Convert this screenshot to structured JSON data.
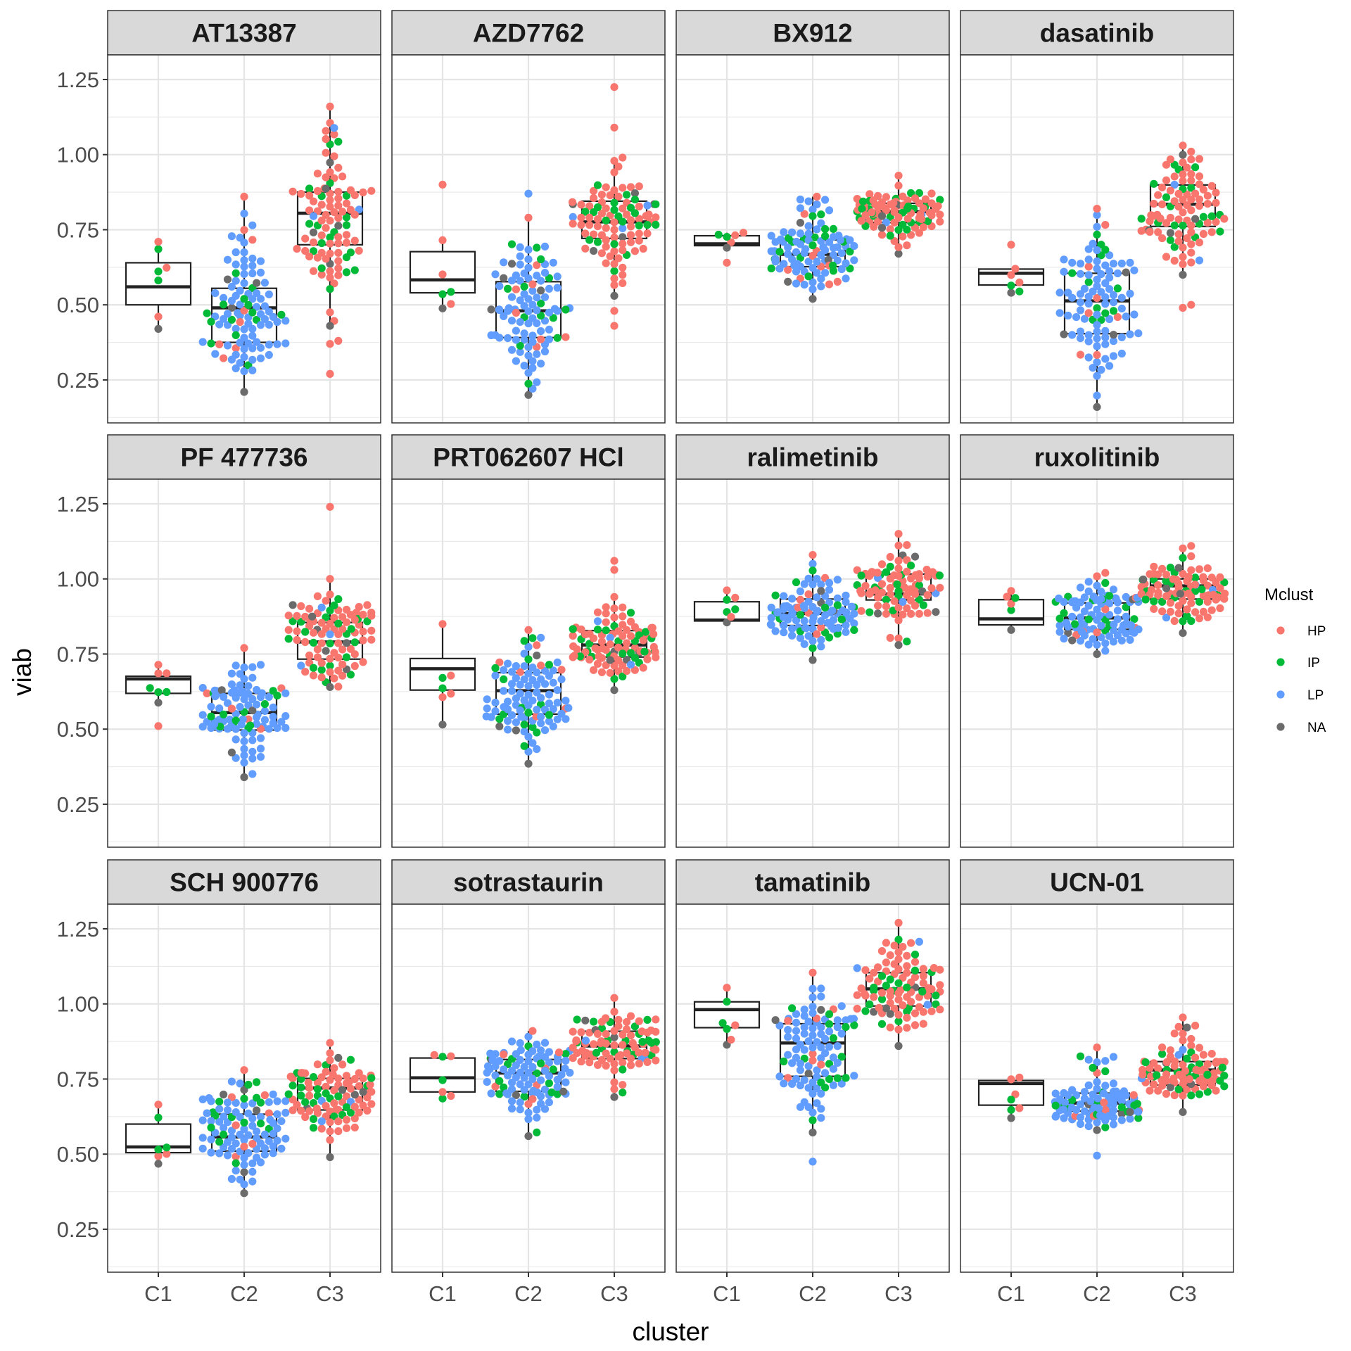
{
  "chart_data": {
    "type": "box",
    "overlay": "beeswarm points",
    "title": "",
    "xlabel": "cluster",
    "ylabel": "viab",
    "ylim": [
      0.107,
      1.332
    ],
    "yticks": [
      0.25,
      0.5,
      0.75,
      1.0,
      1.25
    ],
    "ytick_labels": [
      "0.25",
      "0.50",
      "0.75",
      "1.00",
      "1.25"
    ],
    "categories": [
      "C1",
      "C2",
      "C3"
    ],
    "grid": true,
    "facet_layout": "3 rows x 4 columns",
    "legend": {
      "title": "Mclust",
      "position": "right",
      "entries": [
        {
          "label": "HP",
          "color": "#F8766D"
        },
        {
          "label": "IP",
          "color": "#00BA38"
        },
        {
          "label": "LP",
          "color": "#619CFF"
        },
        {
          "label": "NA",
          "color": "#6B6B6B"
        }
      ]
    },
    "panels": [
      {
        "title": "AT13387",
        "groups": [
          {
            "cluster": "C1",
            "q1": 0.5,
            "median": 0.56,
            "q3": 0.64,
            "whisker_low": 0.42,
            "whisker_high": 0.71,
            "n": {
              "HP": 3,
              "IP": 3,
              "LP": 0,
              "NA": 1
            }
          },
          {
            "cluster": "C2",
            "q1": 0.375,
            "median": 0.49,
            "q3": 0.555,
            "whisker_low": 0.21,
            "whisker_high": 0.86,
            "n": {
              "HP": 8,
              "IP": 14,
              "LP": 78,
              "NA": 4
            }
          },
          {
            "cluster": "C3",
            "q1": 0.7,
            "median": 0.805,
            "q3": 0.875,
            "whisker_low": 0.43,
            "whisker_high": 1.16,
            "n": {
              "HP": 70,
              "IP": 20,
              "LP": 3,
              "NA": 6
            },
            "outliers": [
              0.37,
              0.38,
              0.27
            ]
          }
        ]
      },
      {
        "title": "AZD7762",
        "groups": [
          {
            "cluster": "C1",
            "q1": 0.54,
            "median": 0.583,
            "q3": 0.677,
            "whisker_low": 0.488,
            "whisker_high": 0.715,
            "n": {
              "HP": 3,
              "IP": 2,
              "LP": 0,
              "NA": 1
            },
            "outliers": [
              0.9
            ]
          },
          {
            "cluster": "C2",
            "q1": 0.391,
            "median": 0.48,
            "q3": 0.577,
            "whisker_low": 0.2,
            "whisker_high": 0.79,
            "n": {
              "HP": 8,
              "IP": 14,
              "LP": 78,
              "NA": 5
            },
            "outliers": [
              0.87
            ]
          },
          {
            "cluster": "C3",
            "q1": 0.721,
            "median": 0.776,
            "q3": 0.845,
            "whisker_low": 0.53,
            "whisker_high": 0.99,
            "n": {
              "HP": 70,
              "IP": 22,
              "LP": 3,
              "NA": 6
            },
            "outliers": [
              1.09,
              1.225,
              0.48,
              0.43
            ]
          }
        ]
      },
      {
        "title": "BX912",
        "groups": [
          {
            "cluster": "C1",
            "q1": 0.697,
            "median": 0.703,
            "q3": 0.73,
            "whisker_low": 0.69,
            "whisker_high": 0.74,
            "n": {
              "HP": 3,
              "IP": 2,
              "LP": 0,
              "NA": 1
            },
            "outliers": [
              0.64
            ]
          },
          {
            "cluster": "C2",
            "q1": 0.627,
            "median": 0.668,
            "q3": 0.716,
            "whisker_low": 0.52,
            "whisker_high": 0.86,
            "n": {
              "HP": 10,
              "IP": 20,
              "LP": 72,
              "NA": 4
            }
          },
          {
            "cluster": "C3",
            "q1": 0.774,
            "median": 0.81,
            "q3": 0.838,
            "whisker_low": 0.67,
            "whisker_high": 0.93,
            "n": {
              "HP": 65,
              "IP": 28,
              "LP": 2,
              "NA": 4
            }
          }
        ]
      },
      {
        "title": "dasatinib",
        "groups": [
          {
            "cluster": "C1",
            "q1": 0.566,
            "median": 0.605,
            "q3": 0.619,
            "whisker_low": 0.54,
            "whisker_high": 0.62,
            "n": {
              "HP": 3,
              "IP": 2,
              "LP": 0,
              "NA": 1
            },
            "outliers": [
              0.7
            ]
          },
          {
            "cluster": "C2",
            "q1": 0.404,
            "median": 0.513,
            "q3": 0.605,
            "whisker_low": 0.16,
            "whisker_high": 0.82,
            "n": {
              "HP": 8,
              "IP": 12,
              "LP": 80,
              "NA": 4
            }
          },
          {
            "cluster": "C3",
            "q1": 0.761,
            "median": 0.835,
            "q3": 0.899,
            "whisker_low": 0.6,
            "whisker_high": 1.03,
            "n": {
              "HP": 72,
              "IP": 20,
              "LP": 2,
              "NA": 5
            },
            "outliers": [
              0.5,
              0.49
            ]
          }
        ]
      },
      {
        "title": "PF 477736",
        "groups": [
          {
            "cluster": "C1",
            "q1": 0.619,
            "median": 0.667,
            "q3": 0.676,
            "whisker_low": 0.588,
            "whisker_high": 0.714,
            "n": {
              "HP": 3,
              "IP": 3,
              "LP": 0,
              "NA": 1
            },
            "outliers": [
              0.51
            ]
          },
          {
            "cluster": "C2",
            "q1": 0.497,
            "median": 0.555,
            "q3": 0.619,
            "whisker_low": 0.34,
            "whisker_high": 0.77,
            "n": {
              "HP": 6,
              "IP": 12,
              "LP": 82,
              "NA": 4
            }
          },
          {
            "cluster": "C3",
            "q1": 0.733,
            "median": 0.79,
            "q3": 0.855,
            "whisker_low": 0.64,
            "whisker_high": 1.0,
            "n": {
              "HP": 68,
              "IP": 22,
              "LP": 3,
              "NA": 7
            },
            "outliers": [
              1.24
            ]
          }
        ]
      },
      {
        "title": "PRT062607 HCl",
        "groups": [
          {
            "cluster": "C1",
            "q1": 0.63,
            "median": 0.701,
            "q3": 0.735,
            "whisker_low": 0.515,
            "whisker_high": 0.85,
            "n": {
              "HP": 4,
              "IP": 2,
              "LP": 0,
              "NA": 1
            }
          },
          {
            "cluster": "C2",
            "q1": 0.55,
            "median": 0.628,
            "q3": 0.688,
            "whisker_low": 0.385,
            "whisker_high": 0.83,
            "n": {
              "HP": 8,
              "IP": 16,
              "LP": 78,
              "NA": 4
            }
          },
          {
            "cluster": "C3",
            "q1": 0.74,
            "median": 0.78,
            "q3": 0.828,
            "whisker_low": 0.63,
            "whisker_high": 0.94,
            "n": {
              "HP": 68,
              "IP": 24,
              "LP": 3,
              "NA": 5
            },
            "outliers": [
              1.03,
              1.06
            ]
          }
        ]
      },
      {
        "title": "ralimetinib",
        "groups": [
          {
            "cluster": "C1",
            "q1": 0.86,
            "median": 0.863,
            "q3": 0.924,
            "whisker_low": 0.855,
            "whisker_high": 0.962,
            "n": {
              "HP": 3,
              "IP": 3,
              "LP": 0,
              "NA": 1
            }
          },
          {
            "cluster": "C2",
            "q1": 0.845,
            "median": 0.885,
            "q3": 0.933,
            "whisker_low": 0.73,
            "whisker_high": 1.08,
            "n": {
              "HP": 8,
              "IP": 16,
              "LP": 78,
              "NA": 4
            }
          },
          {
            "cluster": "C3",
            "q1": 0.93,
            "median": 0.95,
            "q3": 1.016,
            "whisker_low": 0.78,
            "whisker_high": 1.15,
            "n": {
              "HP": 70,
              "IP": 20,
              "LP": 3,
              "NA": 6
            }
          }
        ]
      },
      {
        "title": "ruxolitinib",
        "groups": [
          {
            "cluster": "C1",
            "q1": 0.847,
            "median": 0.867,
            "q3": 0.931,
            "whisker_low": 0.83,
            "whisker_high": 0.96,
            "n": {
              "HP": 3,
              "IP": 2,
              "LP": 0,
              "NA": 1
            }
          },
          {
            "cluster": "C2",
            "q1": 0.832,
            "median": 0.87,
            "q3": 0.92,
            "whisker_low": 0.75,
            "whisker_high": 1.02,
            "n": {
              "HP": 8,
              "IP": 16,
              "LP": 78,
              "NA": 4
            }
          },
          {
            "cluster": "C3",
            "q1": 0.933,
            "median": 0.977,
            "q3": 1.0,
            "whisker_low": 0.82,
            "whisker_high": 1.11,
            "n": {
              "HP": 70,
              "IP": 22,
              "LP": 3,
              "NA": 5
            }
          }
        ]
      },
      {
        "title": "SCH 900776",
        "groups": [
          {
            "cluster": "C1",
            "q1": 0.505,
            "median": 0.524,
            "q3": 0.6,
            "whisker_low": 0.468,
            "whisker_high": 0.665,
            "n": {
              "HP": 3,
              "IP": 3,
              "LP": 0,
              "NA": 1
            }
          },
          {
            "cluster": "C2",
            "q1": 0.51,
            "median": 0.557,
            "q3": 0.633,
            "whisker_low": 0.37,
            "whisker_high": 0.78,
            "n": {
              "HP": 8,
              "IP": 16,
              "LP": 78,
              "NA": 5
            }
          },
          {
            "cluster": "C3",
            "q1": 0.647,
            "median": 0.72,
            "q3": 0.752,
            "whisker_low": 0.49,
            "whisker_high": 0.87,
            "n": {
              "HP": 68,
              "IP": 24,
              "LP": 3,
              "NA": 6
            }
          }
        ]
      },
      {
        "title": "sotrastaurin",
        "groups": [
          {
            "cluster": "C1",
            "q1": 0.707,
            "median": 0.754,
            "q3": 0.82,
            "whisker_low": 0.685,
            "whisker_high": 0.83,
            "n": {
              "HP": 4,
              "IP": 3,
              "LP": 0,
              "NA": 0
            }
          },
          {
            "cluster": "C2",
            "q1": 0.709,
            "median": 0.77,
            "q3": 0.815,
            "whisker_low": 0.56,
            "whisker_high": 0.91,
            "n": {
              "HP": 8,
              "IP": 16,
              "LP": 78,
              "NA": 4
            }
          },
          {
            "cluster": "C3",
            "q1": 0.818,
            "median": 0.86,
            "q3": 0.909,
            "whisker_low": 0.69,
            "whisker_high": 1.02,
            "n": {
              "HP": 70,
              "IP": 22,
              "LP": 3,
              "NA": 4
            }
          }
        ]
      },
      {
        "title": "tamatinib",
        "groups": [
          {
            "cluster": "C1",
            "q1": 0.921,
            "median": 0.981,
            "q3": 1.007,
            "whisker_low": 0.864,
            "whisker_high": 1.054,
            "n": {
              "HP": 3,
              "IP": 3,
              "LP": 0,
              "NA": 1
            }
          },
          {
            "cluster": "C2",
            "q1": 0.759,
            "median": 0.87,
            "q3": 0.934,
            "whisker_low": 0.572,
            "whisker_high": 1.104,
            "n": {
              "HP": 8,
              "IP": 16,
              "LP": 78,
              "NA": 4
            },
            "outliers": [
              0.475
            ]
          },
          {
            "cluster": "C3",
            "q1": 0.993,
            "median": 1.05,
            "q3": 1.104,
            "whisker_low": 0.86,
            "whisker_high": 1.27,
            "n": {
              "HP": 70,
              "IP": 22,
              "LP": 3,
              "NA": 5
            }
          }
        ]
      },
      {
        "title": "UCN-01",
        "groups": [
          {
            "cluster": "C1",
            "q1": 0.663,
            "median": 0.735,
            "q3": 0.745,
            "whisker_low": 0.62,
            "whisker_high": 0.755,
            "n": {
              "HP": 4,
              "IP": 2,
              "LP": 0,
              "NA": 1
            }
          },
          {
            "cluster": "C2",
            "q1": 0.643,
            "median": 0.67,
            "q3": 0.703,
            "whisker_low": 0.58,
            "whisker_high": 0.855,
            "n": {
              "HP": 8,
              "IP": 16,
              "LP": 78,
              "NA": 4
            },
            "outliers": [
              0.495
            ]
          },
          {
            "cluster": "C3",
            "q1": 0.73,
            "median": 0.78,
            "q3": 0.808,
            "whisker_low": 0.64,
            "whisker_high": 0.955,
            "n": {
              "HP": 68,
              "IP": 22,
              "LP": 3,
              "NA": 5
            }
          }
        ]
      }
    ]
  }
}
